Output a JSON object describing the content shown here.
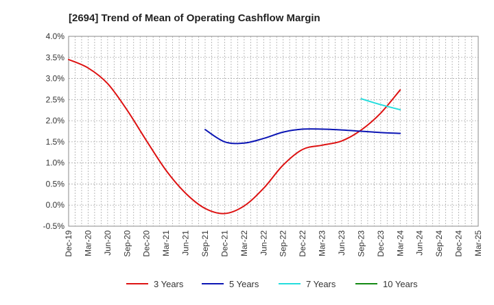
{
  "chart_data": {
    "type": "line",
    "title": "[2694]  Trend of Mean of Operating Cashflow Margin",
    "xlabel": "",
    "ylabel": "",
    "categories": [
      "Dec-19",
      "Mar-20",
      "Jun-20",
      "Sep-20",
      "Dec-20",
      "Mar-21",
      "Jun-21",
      "Sep-21",
      "Dec-21",
      "Mar-22",
      "Jun-22",
      "Sep-22",
      "Dec-22",
      "Mar-23",
      "Jun-23",
      "Sep-23",
      "Dec-23",
      "Mar-24",
      "Jun-24",
      "Sep-24",
      "Dec-24",
      "Mar-25"
    ],
    "ylim": [
      -0.5,
      4.0
    ],
    "yticks": [
      -0.5,
      0.0,
      0.5,
      1.0,
      1.5,
      2.0,
      2.5,
      3.0,
      3.5,
      4.0
    ],
    "ytick_labels": [
      "-0.5%",
      "0.0%",
      "0.5%",
      "1.0%",
      "1.5%",
      "2.0%",
      "2.5%",
      "3.0%",
      "3.5%",
      "4.0%"
    ],
    "grid": true,
    "legend_position": "bottom",
    "series": [
      {
        "name": "3 Years",
        "color": "#dd1111",
        "values": [
          3.45,
          3.25,
          2.88,
          2.25,
          1.52,
          0.82,
          0.28,
          -0.08,
          -0.2,
          -0.02,
          0.4,
          0.95,
          1.32,
          1.42,
          1.52,
          1.78,
          2.18,
          2.73,
          null,
          null,
          null,
          null
        ]
      },
      {
        "name": "5 Years",
        "color": "#0a14b4",
        "values": [
          null,
          null,
          null,
          null,
          null,
          null,
          null,
          1.79,
          1.5,
          1.47,
          1.58,
          1.73,
          1.8,
          1.8,
          1.78,
          1.75,
          1.72,
          1.7,
          null,
          null,
          null,
          null
        ]
      },
      {
        "name": "7 Years",
        "color": "#22dddd",
        "values": [
          null,
          null,
          null,
          null,
          null,
          null,
          null,
          null,
          null,
          null,
          null,
          null,
          null,
          null,
          null,
          2.52,
          2.38,
          2.26,
          null,
          null,
          null,
          null
        ]
      },
      {
        "name": "10 Years",
        "color": "#118811",
        "values": [
          null,
          null,
          null,
          null,
          null,
          null,
          null,
          null,
          null,
          null,
          null,
          null,
          null,
          null,
          null,
          null,
          null,
          null,
          null,
          null,
          null,
          null
        ]
      }
    ]
  }
}
